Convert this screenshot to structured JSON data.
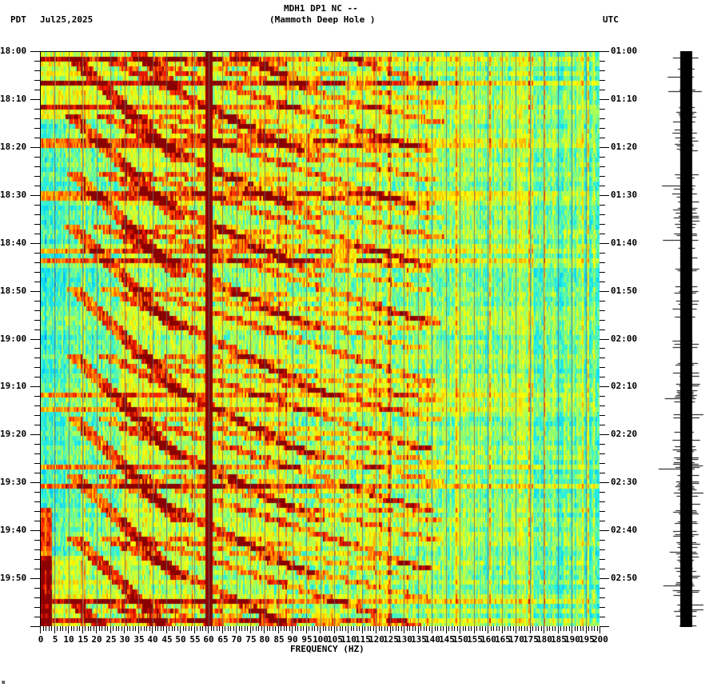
{
  "header": {
    "title_line1": "MDH1 DP1 NC --",
    "title_line2": "(Mammoth Deep Hole )",
    "left_timezone": "PDT",
    "date": "Jul25,2025",
    "right_timezone": "UTC"
  },
  "footer": {
    "corner_mark": "ᴚ"
  },
  "chart_data": {
    "type": "heatmap",
    "title": "MDH1 DP1 NC -- (Mammoth Deep Hole )",
    "subtitle": "Jul25,2025",
    "xlabel": "FREQUENCY (HZ)",
    "ylabel_left": "PDT",
    "ylabel_right": "UTC",
    "xlim": [
      0,
      200
    ],
    "x_ticks": [
      "0",
      "5",
      "10",
      "15",
      "20",
      "25",
      "30",
      "35",
      "40",
      "45",
      "50",
      "55",
      "60",
      "65",
      "70",
      "75",
      "80",
      "85",
      "90",
      "95",
      "100",
      "105",
      "110",
      "115",
      "120",
      "125",
      "130",
      "135",
      "140",
      "145",
      "150",
      "155",
      "160",
      "165",
      "170",
      "175",
      "180",
      "185",
      "190",
      "195",
      "200"
    ],
    "y_ticks_left": [
      "18:00",
      "18:10",
      "18:20",
      "18:30",
      "18:40",
      "18:50",
      "19:00",
      "19:10",
      "19:20",
      "19:30",
      "19:40",
      "19:50"
    ],
    "y_ticks_right": [
      "01:00",
      "01:10",
      "01:20",
      "01:30",
      "01:40",
      "01:50",
      "02:00",
      "02:10",
      "02:20",
      "02:30",
      "02:40",
      "02:50"
    ],
    "time_span_minutes": 120,
    "colormap": [
      "#0050ff",
      "#00c8ff",
      "#28f0e0",
      "#a0ff60",
      "#ffff00",
      "#ffa000",
      "#ff2000",
      "#8b0000"
    ],
    "features": {
      "persistent_line_hz": 60,
      "secondary_line_hz": 180,
      "low_freq_quiet_band_hz": [
        0,
        25
      ],
      "broadband_events_minutes": [
        1,
        6,
        11,
        18.5,
        29.5,
        41,
        43,
        71,
        74,
        86.5,
        90.5,
        114.5,
        118
      ],
      "chirp_sweeps": "repeating diagonal harmonics sweeping from low to high frequency roughly every 10-15 minutes"
    },
    "grid": true,
    "legend": null
  },
  "seismogram": {
    "label": "trace",
    "color": "#000000"
  }
}
